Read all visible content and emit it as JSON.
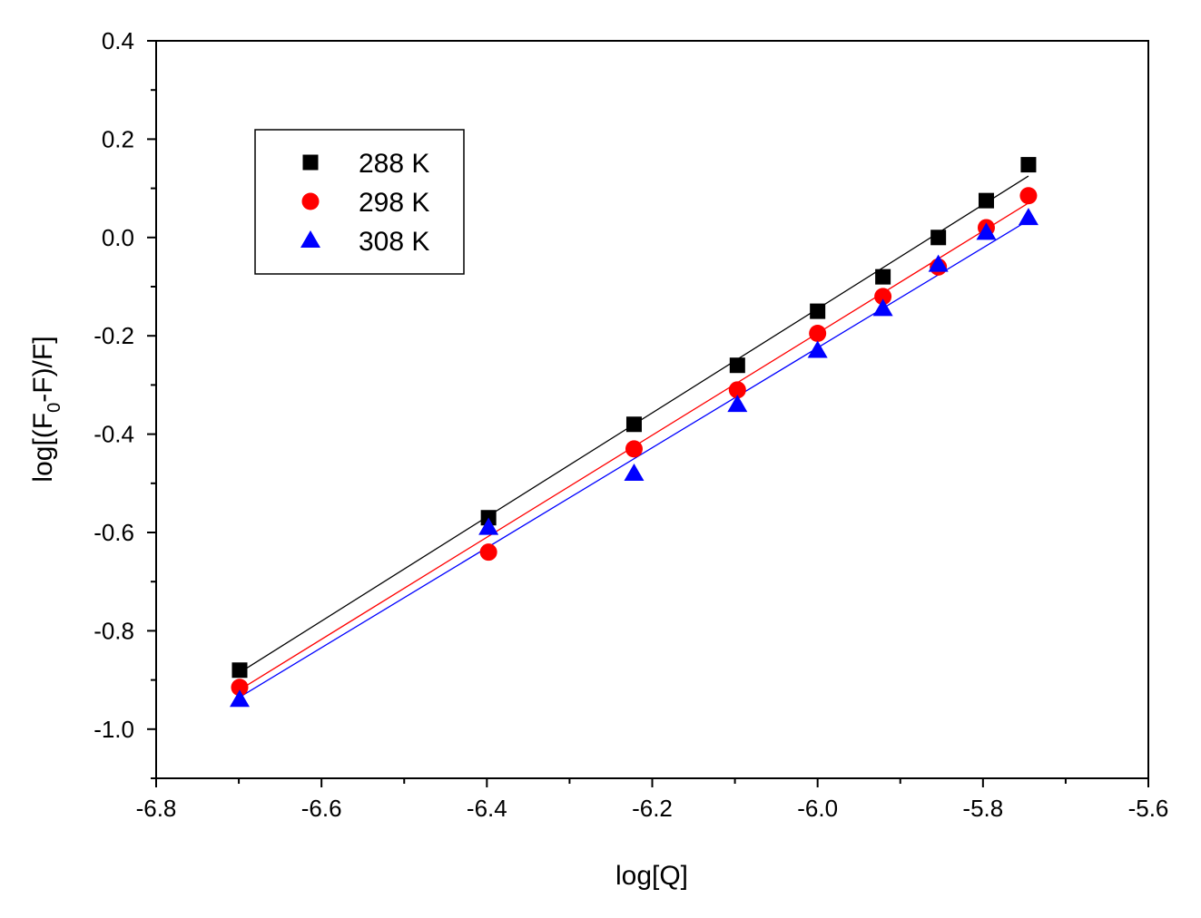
{
  "chart_data": {
    "type": "scatter",
    "xlabel": "log[Q]",
    "ylabel_parts": {
      "pre": "log[(F",
      "sub": "0",
      "post": "-F)/F]"
    },
    "xlim": [
      -6.8,
      -5.6
    ],
    "ylim": [
      -1.1,
      0.4
    ],
    "x_ticks": [
      -6.8,
      -6.6,
      -6.4,
      -6.2,
      -6.0,
      -5.8,
      -5.6
    ],
    "x_tick_labels": [
      "-6.8",
      "-6.6",
      "-6.4",
      "-6.2",
      "-6.0",
      "-5.8",
      "-5.6"
    ],
    "y_ticks": [
      -1.0,
      -0.8,
      -0.6,
      -0.4,
      -0.2,
      0.0,
      0.2,
      0.4
    ],
    "y_tick_labels": [
      "-1.0",
      "-0.8",
      "-0.6",
      "-0.4",
      "-0.2",
      "0.0",
      "0.2",
      "0.4"
    ],
    "legend_position": "top-left",
    "x": [
      -6.699,
      -6.398,
      -6.222,
      -6.097,
      -6.0,
      -5.921,
      -5.854,
      -5.796,
      -5.745
    ],
    "series": [
      {
        "name": "288 K",
        "marker": "square",
        "color": "#000000",
        "values": [
          -0.88,
          -0.57,
          -0.38,
          -0.26,
          -0.15,
          -0.08,
          0.0,
          0.075,
          0.148
        ],
        "fit": {
          "x": [
            -6.699,
            -5.745
          ],
          "y": [
            -0.885,
            0.125
          ]
        }
      },
      {
        "name": "298 K",
        "marker": "circle",
        "color": "#ff0000",
        "values": [
          -0.915,
          -0.64,
          -0.43,
          -0.31,
          -0.195,
          -0.12,
          -0.06,
          0.02,
          0.085
        ],
        "fit": {
          "x": [
            -6.699,
            -5.745
          ],
          "y": [
            -0.92,
            0.07
          ]
        }
      },
      {
        "name": "308 K",
        "marker": "triangle",
        "color": "#0000ff",
        "values": [
          -0.94,
          -0.59,
          -0.48,
          -0.34,
          -0.23,
          -0.145,
          -0.055,
          0.01,
          0.04
        ],
        "fit": {
          "x": [
            -6.699,
            -5.745
          ],
          "y": [
            -0.935,
            0.035
          ]
        }
      }
    ]
  }
}
